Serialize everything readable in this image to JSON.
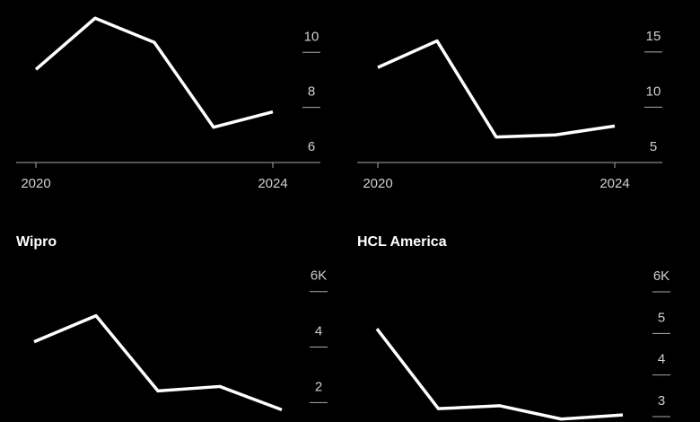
{
  "chart_data": [
    {
      "type": "line",
      "x": [
        2020,
        2021,
        2022,
        2023,
        2024
      ],
      "values": [
        9.38,
        11.24,
        10.36,
        7.28,
        7.84
      ],
      "color": "#ffffff",
      "ylim": [
        6,
        11.9
      ],
      "yticks": [
        6,
        8,
        10
      ],
      "xticks": [
        2020,
        2024
      ]
    },
    {
      "type": "line",
      "x": [
        2020,
        2021,
        2022,
        2023,
        2024
      ],
      "values": [
        13.6,
        16,
        7.3,
        7.5,
        8.3
      ],
      "color": "#ffffff",
      "ylim": [
        5,
        19.7
      ],
      "yticks": [
        5,
        10,
        15
      ],
      "xticks": [
        2020,
        2024
      ]
    },
    {
      "type": "line",
      "title": "Wipro",
      "x": [
        2020,
        2021,
        2022,
        2023,
        2024
      ],
      "values": [
        4.19,
        5.13,
        2.42,
        2.58,
        1.74
      ],
      "color": "#ffffff",
      "ylim": [
        1.3,
        6.8
      ],
      "yticks": [
        2,
        4,
        {
          "value": 6,
          "label": "6K"
        }
      ]
    },
    {
      "type": "line",
      "title": "HCL America",
      "x": [
        2020,
        2021,
        2022,
        2023,
        2024
      ],
      "values": [
        5.11,
        3.19,
        3.26,
        2.94,
        3.04
      ],
      "color": "#ffffff",
      "ylim": [
        2.87,
        6.54
      ],
      "yticks": [
        3,
        4,
        5,
        {
          "value": 6,
          "label": "6K"
        }
      ]
    }
  ]
}
